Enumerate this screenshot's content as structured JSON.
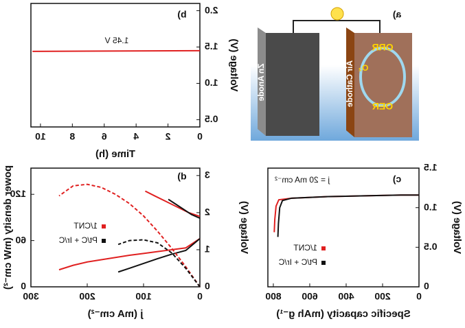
{
  "illustration": {
    "label": "a)",
    "anode": "Zn Anode",
    "cathode": "Air Cathode",
    "reactions": [
      "ORR",
      "OER"
    ],
    "gas": "O₂"
  },
  "chart_data": [
    {
      "type": "line",
      "label": "b)",
      "xlabel": "Time (h)",
      "ylabel": "Voltage (V)",
      "x": [
        0,
        10.5
      ],
      "series": [
        {
          "color": "#e02020",
          "values": [
            1.45,
            1.44
          ]
        }
      ],
      "annotation": "1.45 V",
      "xlim": [
        0,
        10.6
      ],
      "xticks": [
        0,
        2,
        4,
        6,
        8,
        10
      ],
      "ylim": [
        0.4,
        2.1
      ],
      "yticks": [
        0.5,
        {
          "value": 1,
          "label": "1.0"
        },
        1.5,
        {
          "value": 2,
          "label": "2.0"
        }
      ]
    },
    {
      "type": "line",
      "label": "c)",
      "xlabel": "Specific capacity (mAh g⁻¹)",
      "ylabel": "Voltage (V)",
      "annotation": "j = 20 mA cm⁻²",
      "series": [
        {
          "name": "1/CNT",
          "color": "#e02020",
          "x": [
            0,
            100,
            300,
            500,
            700,
            770,
            785,
            792,
            795
          ],
          "values": [
            1.16,
            1.16,
            1.15,
            1.14,
            1.12,
            1.1,
            1.02,
            0.85,
            0.69
          ]
        },
        {
          "name": "Pt/C + Ir/C",
          "color": "#111111",
          "x": [
            0,
            100,
            300,
            500,
            700,
            750,
            765,
            772,
            775
          ],
          "values": [
            1.16,
            1.16,
            1.15,
            1.14,
            1.12,
            1.09,
            1.0,
            0.8,
            0.63
          ]
        }
      ],
      "xlim": [
        0,
        830
      ],
      "xticks": [
        0,
        200,
        400,
        600,
        800
      ],
      "ylim": [
        0,
        1.5
      ],
      "yticks": [
        0,
        0.5,
        {
          "value": 1,
          "label": "1.0"
        },
        1.5
      ]
    },
    {
      "type": "line",
      "label": "d)",
      "xlabel": "j (mA cm⁻²)",
      "ylabel": "Voltage (V)",
      "y2label": "power density (mW cm⁻²)",
      "series": [
        {
          "name": "1/CNT",
          "color": "#e02020",
          "x": [
            0,
            25,
            50,
            75,
            100,
            125,
            150,
            175,
            200,
            225,
            250
          ],
          "values": [
            1.3,
            1.05,
            1.0,
            0.95,
            0.9,
            0.85,
            0.79,
            0.73,
            0.67,
            0.58,
            0.46
          ]
        },
        {
          "name": "Pt/C + Ir/C",
          "color": "#111111",
          "x": [
            0,
            25,
            50,
            75,
            100,
            125,
            145
          ],
          "values": [
            1.3,
            0.98,
            0.88,
            0.76,
            0.63,
            0.5,
            0.4
          ]
        },
        {
          "color": "#e02020",
          "x": [
            0,
            20,
            40,
            60,
            80,
            97
          ],
          "values": [
            1.9,
            2.0,
            2.15,
            2.3,
            2.45,
            2.58
          ]
        },
        {
          "color": "#111111",
          "x": [
            0,
            15,
            30,
            45,
            56
          ],
          "values": [
            1.85,
            1.95,
            2.1,
            2.25,
            2.36
          ]
        },
        {
          "color": "#e02020",
          "dashed": true,
          "axis": "y2",
          "x": [
            0,
            25,
            50,
            75,
            100,
            125,
            150,
            175,
            200,
            225,
            250
          ],
          "values": [
            0,
            26,
            50,
            72,
            92,
            108,
            120,
            129,
            133,
            131,
            118
          ]
        },
        {
          "color": "#111111",
          "dashed": true,
          "axis": "y2",
          "x": [
            0,
            25,
            50,
            75,
            100,
            125,
            145
          ],
          "values": [
            0,
            24,
            44,
            57,
            61,
            60,
            55
          ]
        }
      ],
      "xlim": [
        0,
        300
      ],
      "xticks": [
        0,
        100,
        200,
        300
      ],
      "ylim": [
        0,
        3.2
      ],
      "yticks": [
        0,
        1,
        2,
        3
      ],
      "y2lim": [
        0,
        154
      ],
      "y2ticks": [
        0,
        60,
        120
      ]
    }
  ]
}
